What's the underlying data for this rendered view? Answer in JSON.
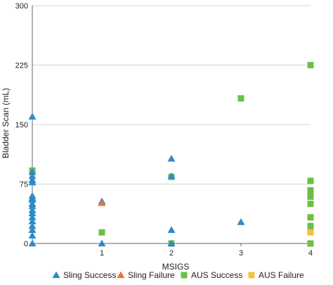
{
  "chart_data": {
    "type": "scatter",
    "xlabel": "MSIGS",
    "ylabel": "Bladder Scan (mL)",
    "xlim": [
      0,
      4
    ],
    "ylim": [
      0,
      300
    ],
    "x_ticks": [
      "1",
      "2",
      "3",
      "4"
    ],
    "y_ticks": [
      "0",
      "75",
      "150",
      "225",
      "300"
    ],
    "grid": "horizontal",
    "legend_position": "bottom",
    "series": [
      {
        "name": "Sling Success",
        "marker": "triangle",
        "color": "#2E8BC8",
        "points": [
          [
            0,
            160
          ],
          [
            0,
            90
          ],
          [
            0,
            85
          ],
          [
            0,
            80
          ],
          [
            0,
            77
          ],
          [
            0,
            60
          ],
          [
            0,
            57
          ],
          [
            0,
            55
          ],
          [
            0,
            50
          ],
          [
            0,
            47
          ],
          [
            0,
            42
          ],
          [
            0,
            38
          ],
          [
            0,
            33
          ],
          [
            0,
            28
          ],
          [
            0,
            22
          ],
          [
            0,
            17
          ],
          [
            0,
            10
          ],
          [
            0,
            0
          ],
          [
            1,
            53
          ],
          [
            1,
            0
          ],
          [
            2,
            107
          ],
          [
            2,
            85
          ],
          [
            2,
            17
          ],
          [
            2,
            0
          ],
          [
            3,
            27
          ]
        ]
      },
      {
        "name": "Sling Failure",
        "marker": "triangle",
        "color": "#E8743B",
        "points": [
          [
            1,
            51
          ]
        ]
      },
      {
        "name": "AUS Success",
        "marker": "square",
        "color": "#6DBE45",
        "points": [
          [
            0,
            92
          ],
          [
            1,
            14
          ],
          [
            2,
            84
          ],
          [
            2,
            0
          ],
          [
            3,
            183
          ],
          [
            4,
            225
          ],
          [
            4,
            79
          ],
          [
            4,
            67
          ],
          [
            4,
            63
          ],
          [
            4,
            59
          ],
          [
            4,
            50
          ],
          [
            4,
            33
          ],
          [
            4,
            22
          ],
          [
            4,
            20
          ],
          [
            4,
            0
          ]
        ]
      },
      {
        "name": "AUS Failure",
        "marker": "square",
        "color": "#F5C040",
        "points": [
          [
            4,
            14
          ]
        ]
      }
    ]
  }
}
